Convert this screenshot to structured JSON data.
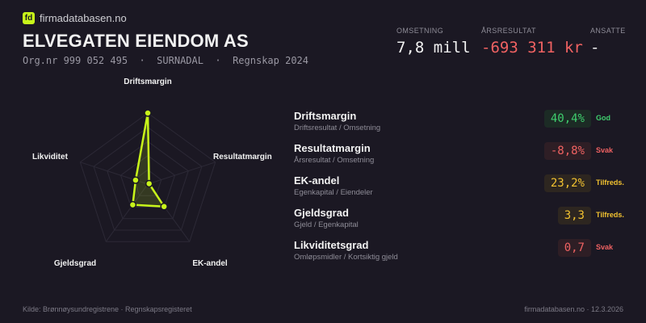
{
  "brand": {
    "logo_text": "fd",
    "name": "firmadatabasen.no"
  },
  "company": {
    "name": "ELVEGATEN EIENDOM AS",
    "subtitle": "Org.nr 999 052 495  ·  SURNADAL  ·  Regnskap 2024"
  },
  "kpis": [
    {
      "label": "OMSETNING",
      "value": "7,8 mill",
      "color": "#f2f2f2"
    },
    {
      "label": "ÅRSRESULTAT",
      "value": "-693 311 kr",
      "color": "#f06262"
    },
    {
      "label": "ANSATTE",
      "value": "-",
      "color": "#f2f2f2"
    }
  ],
  "chart_data": {
    "type": "radar",
    "axes": [
      "Driftsmargin",
      "Resultatmargin",
      "EK-andel",
      "Gjeldsgrad",
      "Likviditet"
    ],
    "scores": [
      1.0,
      0.0,
      0.39,
      0.36,
      0.18
    ],
    "range": [
      0,
      1
    ],
    "grid_levels": 5,
    "color": "#c8f51a"
  },
  "metrics": [
    {
      "name": "Driftsmargin",
      "desc": "Driftsresultat / Omsetning",
      "value": "40,4%",
      "status": "God",
      "color": "#3fcf6e",
      "bg": "#1c2b25"
    },
    {
      "name": "Resultatmargin",
      "desc": "Årsresultat / Omsetning",
      "value": "-8,8%",
      "status": "Svak",
      "color": "#f06262",
      "bg": "#2e1e25"
    },
    {
      "name": "EK-andel",
      "desc": "Egenkapital / Eiendeler",
      "value": "23,2%",
      "status": "Tilfreds.",
      "color": "#f2c230",
      "bg": "#2d2620"
    },
    {
      "name": "Gjeldsgrad",
      "desc": "Gjeld / Egenkapital",
      "value": "3,3",
      "status": "Tilfreds.",
      "color": "#f2c230",
      "bg": "#2d2620"
    },
    {
      "name": "Likviditetsgrad",
      "desc": "Omløpsmidler / Kortsiktig gjeld",
      "value": "0,7",
      "status": "Svak",
      "color": "#f06262",
      "bg": "#2e1e25"
    }
  ],
  "footer": {
    "source": "Kilde: Brønnøysundregistrene · Regnskapsregisteret",
    "site_date": "firmadatabasen.no · 12.3.2026"
  }
}
